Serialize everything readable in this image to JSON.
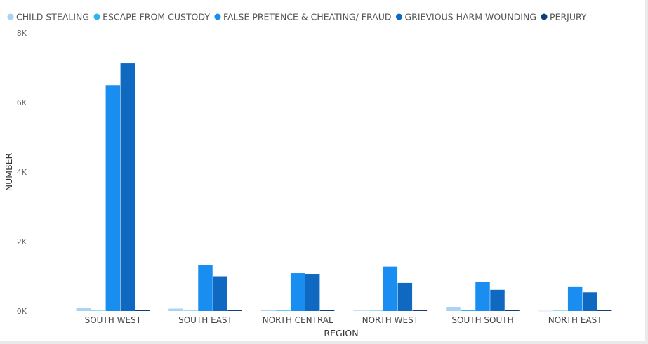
{
  "chart_data": {
    "type": "bar",
    "categories": [
      "SOUTH WEST",
      "SOUTH EAST",
      "NORTH CENTRAL",
      "NORTH WEST",
      "SOUTH SOUTH",
      "NORTH EAST"
    ],
    "series": [
      {
        "name": "CHILD STEALING",
        "color": "#a9d3f5",
        "values": [
          80,
          70,
          40,
          15,
          100,
          5
        ]
      },
      {
        "name": "ESCAPE FROM CUSTODY",
        "color": "#2bb6e8",
        "values": [
          10,
          10,
          15,
          10,
          20,
          10
        ]
      },
      {
        "name": "FALSE PRETENCE & CHEATING/ FRAUD",
        "color": "#1a8ef0",
        "values": [
          6500,
          1330,
          1090,
          1280,
          830,
          690
        ]
      },
      {
        "name": "GRIEVIOUS HARM WOUNDING",
        "color": "#0f69c0",
        "values": [
          7130,
          1000,
          1050,
          810,
          610,
          540
        ]
      },
      {
        "name": "PERJURY",
        "color": "#0d3d7a",
        "values": [
          40,
          20,
          20,
          20,
          20,
          20
        ]
      }
    ],
    "xlabel": "REGION",
    "ylabel": "NUMBER",
    "ylim": [
      0,
      8000
    ],
    "yticks": [
      0,
      2000,
      4000,
      6000,
      8000
    ],
    "ytick_labels": [
      "0K",
      "2K",
      "4K",
      "6K",
      "8K"
    ],
    "legend_position": "top-left",
    "grid": false
  }
}
